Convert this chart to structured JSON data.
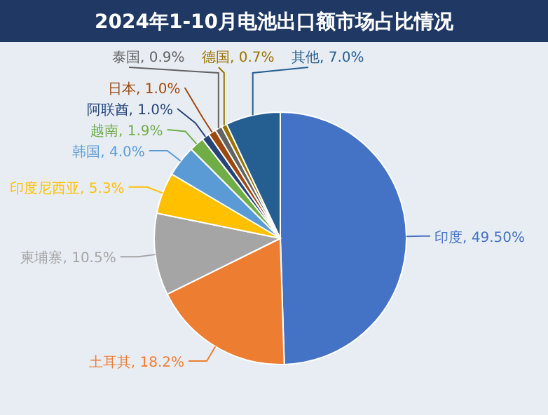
{
  "chart_data": {
    "type": "pie",
    "title": "2024年1-10月电池出口额市场占比情况",
    "categories": [
      "印度",
      "土耳其",
      "柬埔寨",
      "印度尼西亚",
      "韩国",
      "越南",
      "阿联酋",
      "日本",
      "泰国",
      "德国",
      "其他"
    ],
    "values": [
      49.5,
      18.2,
      10.5,
      5.3,
      4.0,
      1.9,
      1.0,
      1.0,
      0.9,
      0.7,
      7.0
    ],
    "value_labels": [
      "49.50%",
      "18.2%",
      "10.5%",
      "5.3%",
      "4.0%",
      "1.9%",
      "1.0%",
      "1.0%",
      "0.9%",
      "0.7%",
      "7.0%"
    ],
    "colors": [
      "#4472c4",
      "#ed7d31",
      "#a5a5a5",
      "#ffc000",
      "#5b9bd5",
      "#70ad47",
      "#264478",
      "#9e480e",
      "#636363",
      "#997300",
      "#255e91"
    ]
  }
}
